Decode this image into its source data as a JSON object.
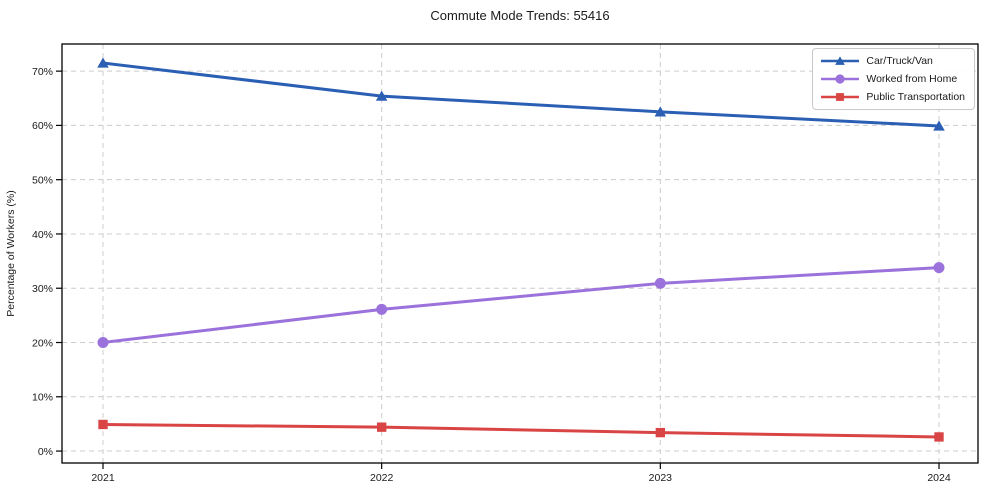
{
  "chart_data": {
    "type": "line",
    "title": "Commute Mode Trends: 55416",
    "xlabel": "",
    "ylabel": "Percentage of Workers (%)",
    "x_tick_labels": [
      "2021",
      "2022",
      "2023",
      "2024"
    ],
    "y_ticks": [
      0,
      10,
      20,
      30,
      40,
      50,
      60,
      70
    ],
    "y_tick_labels": [
      "0%",
      "10%",
      "20%",
      "30%",
      "40%",
      "50%",
      "60%",
      "70%"
    ],
    "ylim": [
      -2.2,
      75
    ],
    "grid": true,
    "grid_style": "dashed",
    "legend_position": "upper right",
    "colors": {
      "grid": "#cccccc",
      "frame": "#000000",
      "text": "#1a1a1a"
    },
    "series": [
      {
        "name": "Car/Truck/Van",
        "marker": "triangle",
        "color": "#2a5fb4",
        "values": [
          71.5,
          65.4,
          62.5,
          59.9
        ]
      },
      {
        "name": "Worked from Home",
        "marker": "circle",
        "color": "#9b72db",
        "values": [
          20.0,
          26.1,
          30.9,
          33.8
        ]
      },
      {
        "name": "Public Transportation",
        "marker": "square",
        "color": "#d94545",
        "values": [
          4.9,
          4.4,
          3.4,
          2.6
        ]
      }
    ]
  }
}
